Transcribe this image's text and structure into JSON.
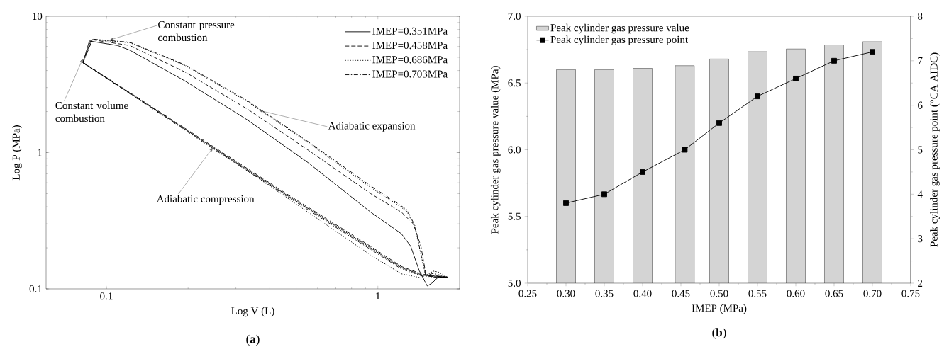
{
  "chart_data": [
    {
      "type": "line",
      "title": "(**a**)",
      "xlabel": "Log V (L)",
      "ylabel": "Log P (MPa)",
      "log": "xy",
      "xlim": [
        0.06,
        2.0
      ],
      "ylim": [
        0.1,
        10
      ],
      "xticks": [
        0.1,
        1
      ],
      "yticks": [
        0.1,
        1,
        10
      ],
      "legend": "top right",
      "series": [
        {
          "color": "#000000",
          "line_style": "solid",
          "x": [
            0.082,
            0.247,
            0.46,
            0.94,
            1.22,
            1.46,
            1.8
          ],
          "values": [
            4.57,
            1.09,
            0.49,
            0.2,
            0.143,
            0.126,
            0.122
          ]
        },
        {
          "color": "#000000",
          "line_style": "dashed",
          "x": [
            0.082,
            0.247,
            0.46,
            0.94,
            1.22,
            1.46,
            1.8
          ],
          "values": [
            4.6,
            1.11,
            0.5,
            0.205,
            0.146,
            0.128,
            0.122
          ]
        },
        {
          "color": "#000000",
          "line_style": "dotted",
          "x": [
            0.082,
            0.247,
            0.46,
            0.94,
            1.22,
            1.46,
            1.8
          ],
          "values": [
            4.57,
            1.09,
            0.47,
            0.177,
            0.129,
            0.12,
            0.122
          ]
        },
        {
          "color": "#000000",
          "line_style": "dashdot",
          "x": [
            0.082,
            0.247,
            0.46,
            0.94,
            1.22,
            1.46,
            1.8
          ],
          "values": [
            4.55,
            1.07,
            0.48,
            0.195,
            0.14,
            0.124,
            0.122
          ]
        },
        {
          "name": "IMEP=0.351MPa",
          "color": "#000000",
          "line_style": "solid",
          "x": [
            0.082,
            0.0866,
            0.11,
            0.122,
            0.195,
            0.329,
            0.555,
            0.94,
            1.22,
            1.32,
            1.42,
            1.52,
            1.58,
            1.67,
            1.8
          ],
          "values": [
            4.57,
            6.59,
            6.1,
            5.64,
            3.35,
            1.75,
            0.84,
            0.366,
            0.254,
            0.206,
            0.136,
            0.105,
            0.11,
            0.122,
            0.122
          ]
        },
        {
          "name": "IMEP=0.458MPa",
          "color": "#000000",
          "line_style": "dashed",
          "x": [
            0.082,
            0.088,
            0.122,
            0.195,
            0.329,
            0.555,
            0.94,
            1.22,
            1.35,
            1.44,
            1.5,
            1.58,
            1.8
          ],
          "values": [
            4.6,
            6.75,
            6.1,
            3.9,
            2.1,
            1.04,
            0.5,
            0.366,
            0.3,
            0.206,
            0.13,
            0.122,
            0.122
          ]
        },
        {
          "name": "IMEP=0.686MPa",
          "color": "#000000",
          "line_style": "dotted",
          "x": [
            0.082,
            0.089,
            0.122,
            0.195,
            0.329,
            0.555,
            0.94,
            1.15,
            1.28,
            1.37,
            1.44,
            1.5,
            1.6,
            1.67,
            1.8
          ],
          "values": [
            4.57,
            6.75,
            6.4,
            4.35,
            2.38,
            1.18,
            0.555,
            0.43,
            0.37,
            0.28,
            0.18,
            0.125,
            0.135,
            0.133,
            0.122
          ]
        },
        {
          "name": "IMEP=0.703MPa",
          "color": "#000000",
          "line_style": "dashdot",
          "x": [
            0.082,
            0.089,
            0.122,
            0.195,
            0.329,
            0.555,
            0.94,
            1.15,
            1.28,
            1.37,
            1.44,
            1.5,
            1.6,
            1.8
          ],
          "values": [
            4.55,
            6.8,
            6.45,
            4.4,
            2.42,
            1.2,
            0.57,
            0.44,
            0.38,
            0.29,
            0.18,
            0.125,
            0.13,
            0.122
          ]
        }
      ],
      "annotations": [
        {
          "text": "Constant pressure combustion",
          "x": 0.103,
          "y": 6.7
        },
        {
          "text": "Constant volume combustion",
          "x": 0.082,
          "y": 4.9
        },
        {
          "text": "Adiabatic expansion",
          "x": 0.365,
          "y": 2.04
        },
        {
          "text": "Adiabatic compression",
          "x": 0.247,
          "y": 1.09
        }
      ]
    },
    {
      "type": "bar",
      "title": "(**b**)",
      "xlabel": "IMEP (MPa)",
      "ylabel": "Peak cylinder gas pressure value (MPa)",
      "y2label": "Peak cylinder gas pressure point (°CA AIDC)",
      "legend": "top left",
      "x": [
        0.3,
        0.35,
        0.4,
        0.455,
        0.5,
        0.55,
        0.6,
        0.65,
        0.7
      ],
      "xlim": [
        0.25,
        0.75
      ],
      "xticks": [
        0.25,
        {
          "value": 0.3,
          "label": "0.30"
        },
        0.35,
        {
          "value": 0.4,
          "label": "0.40"
        },
        0.45,
        {
          "value": 0.5,
          "label": "0.50"
        },
        0.55,
        {
          "value": 0.6,
          "label": "0.60"
        },
        0.65,
        {
          "value": 0.7,
          "label": "0.70"
        },
        0.75
      ],
      "ylim": [
        5,
        7
      ],
      "yticks": [
        {
          "value": 5,
          "label": "5.0"
        },
        5.5,
        {
          "value": 6,
          "label": "6.0"
        },
        6.5,
        {
          "value": 7,
          "label": "7.0"
        }
      ],
      "y2lim": [
        2,
        8
      ],
      "y2ticks": [
        2,
        3,
        4,
        5,
        6,
        7,
        8
      ],
      "series": [
        {
          "name": "Peak cylinder gas pressure value",
          "type": "bar",
          "color": "#d4d4d4",
          "values": [
            6.6,
            6.6,
            6.61,
            6.63,
            6.68,
            6.735,
            6.755,
            6.785,
            6.81
          ]
        },
        {
          "name": "Peak cylinder gas pressure point",
          "type": "line",
          "axis": "y2",
          "marker": "square",
          "color": "#000000",
          "values": [
            3.8,
            4.0,
            4.5,
            5.0,
            5.6,
            6.2,
            6.6,
            7.0,
            7.2
          ]
        }
      ]
    }
  ]
}
